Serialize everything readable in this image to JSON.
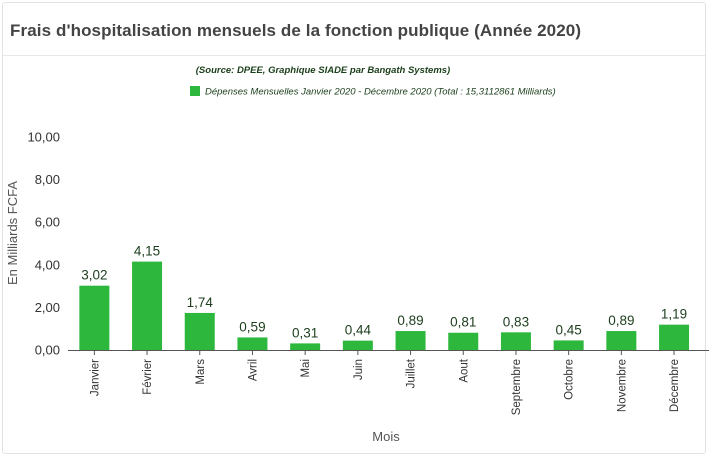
{
  "header": {
    "title": "Frais d'hospitalisation mensuels de la fonction publique (Année 2020)"
  },
  "colors": {
    "bar": "#2db83d",
    "gridline": "#e6e6e6",
    "axis": "#555555"
  },
  "chart_data": {
    "type": "bar",
    "subtitle": "(Source: DPEE, Graphique SIADE par Bangath Systems)",
    "categories": [
      "Janvier",
      "Février",
      "Mars",
      "Avril",
      "Mai",
      "Juin",
      "Juillet",
      "Aout",
      "Septembre",
      "Octobre",
      "Novembre",
      "Décembre"
    ],
    "series": [
      {
        "name": "Dépenses Mensuelles Janvier 2020 - Décembre 2020 (Total : 15,3112861 Milliards)",
        "values": [
          3.02,
          4.15,
          1.74,
          0.59,
          0.31,
          0.44,
          0.89,
          0.81,
          0.83,
          0.45,
          0.89,
          1.19
        ],
        "labels": [
          "3,02",
          "4,15",
          "1,74",
          "0,59",
          "0,31",
          "0,44",
          "0,89",
          "0,81",
          "0,83",
          "0,45",
          "0,89",
          "1,19"
        ]
      }
    ],
    "yticks": [
      "0,00",
      "2,00",
      "4,00",
      "6,00",
      "8,00",
      "10,00"
    ],
    "ylim": [
      0,
      10
    ],
    "xlabel": "Mois",
    "ylabel": "En Milliards FCFA",
    "grid": false,
    "legend": "top-center"
  }
}
